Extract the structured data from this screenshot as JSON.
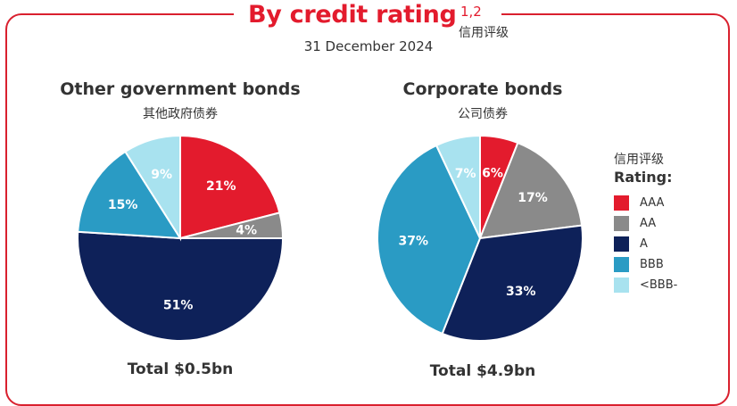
{
  "header": {
    "title": "By credit rating",
    "title_superscript": "1,2",
    "title_cn": "信用评级",
    "date": "31 December 2024"
  },
  "legend": {
    "title_cn": "信用评级",
    "title": "Rating:",
    "items": [
      {
        "label": "AAA",
        "color": "#e31b2d"
      },
      {
        "label": "AA",
        "color": "#8a8a8a"
      },
      {
        "label": "A",
        "color": "#0e2159"
      },
      {
        "label": "BBB",
        "color": "#2a9bc4"
      },
      {
        "label": "<BBB-",
        "color": "#a8e2ef"
      }
    ]
  },
  "chart_data": [
    {
      "type": "pie",
      "title": "Other government bonds",
      "subtitle": "其他政府债券",
      "total": "Total $0.5bn",
      "categories": [
        "AAA",
        "AA",
        "A",
        "BBB",
        "<BBB-"
      ],
      "values": [
        21,
        4,
        51,
        15,
        9
      ],
      "labels": [
        "21%",
        "4%",
        "51%",
        "15%",
        "9%"
      ],
      "colors": [
        "#e31b2d",
        "#8a8a8a",
        "#0e2159",
        "#2a9bc4",
        "#a8e2ef"
      ]
    },
    {
      "type": "pie",
      "title": "Corporate bonds",
      "subtitle": "公司债券",
      "total": "Total $4.9bn",
      "categories": [
        "AAA",
        "AA",
        "A",
        "BBB",
        "<BBB-"
      ],
      "values": [
        6,
        17,
        33,
        37,
        7
      ],
      "labels": [
        "6%",
        "17%",
        "33%",
        "37%",
        "7%"
      ],
      "colors": [
        "#e31b2d",
        "#8a8a8a",
        "#0e2159",
        "#2a9bc4",
        "#a8e2ef"
      ]
    }
  ]
}
